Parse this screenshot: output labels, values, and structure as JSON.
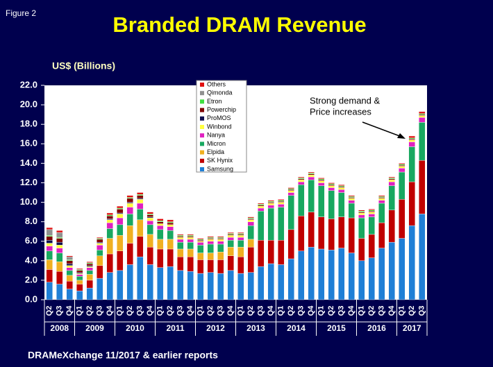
{
  "chart_data": {
    "type": "stacked_bar",
    "figure_label": "Figure 2",
    "title": "Branded DRAM Revenue",
    "y_label": "US$ (Billions)",
    "annotation": [
      "Strong demand &",
      "Price increases"
    ],
    "source": "DRAMeXchange 11/2017 & earlier reports",
    "categories": [
      "Q2",
      "Q3",
      "Q4",
      "Q1",
      "Q2",
      "Q3",
      "Q4",
      "Q1",
      "Q2",
      "Q3",
      "Q4",
      "Q1",
      "Q2",
      "Q3",
      "Q4",
      "Q1",
      "Q2",
      "Q3",
      "Q4",
      "Q1",
      "Q2",
      "Q3",
      "Q4",
      "Q1",
      "Q2",
      "Q3",
      "Q4",
      "Q1",
      "Q2",
      "Q3",
      "Q4",
      "Q1",
      "Q2",
      "Q3",
      "Q4",
      "Q1",
      "Q2",
      "Q3"
    ],
    "years": [
      "2008",
      "2009",
      "2010",
      "2011",
      "2012",
      "2013",
      "2014",
      "2015",
      "2016",
      "2017"
    ],
    "ylim": [
      0,
      22
    ],
    "yticks": [
      {
        "value": 0,
        "label": "0.0"
      },
      {
        "value": 2,
        "label": "2.0"
      },
      {
        "value": 4,
        "label": "4.0"
      },
      {
        "value": 6,
        "label": "6.0"
      },
      {
        "value": 8,
        "label": "8.0"
      },
      {
        "value": 10,
        "label": "10.0"
      },
      {
        "value": 12,
        "label": "12.0"
      },
      {
        "value": 14,
        "label": "14.0"
      },
      {
        "value": 16,
        "label": "16.0"
      },
      {
        "value": 18,
        "label": "18.0"
      },
      {
        "value": 20,
        "label": "20.0"
      },
      {
        "value": 22,
        "label": "22.0"
      }
    ],
    "series": [
      {
        "name": "Samsung",
        "color": "#1f7fd6",
        "values": [
          1.8,
          1.6,
          1.1,
          0.9,
          1.2,
          2.2,
          2.8,
          3.0,
          3.6,
          4.4,
          3.6,
          3.3,
          3.4,
          3.0,
          2.9,
          2.7,
          2.8,
          2.7,
          3.0,
          2.7,
          2.8,
          3.4,
          3.7,
          3.6,
          4.2,
          5.0,
          5.4,
          5.2,
          5.1,
          5.3,
          4.8,
          4.0,
          4.3,
          5.3,
          5.9,
          6.3,
          7.6,
          8.8
        ]
      },
      {
        "name": "SK Hynix",
        "color": "#c00000",
        "values": [
          1.3,
          1.3,
          0.8,
          0.7,
          0.8,
          1.3,
          1.9,
          2.0,
          2.2,
          2.1,
          1.8,
          1.9,
          1.8,
          1.4,
          1.5,
          1.4,
          1.3,
          1.4,
          1.5,
          1.7,
          2.6,
          2.7,
          2.4,
          2.5,
          3.0,
          3.6,
          3.6,
          3.3,
          3.2,
          3.2,
          3.6,
          2.3,
          2.4,
          2.6,
          3.3,
          4.0,
          4.5,
          5.5
        ]
      },
      {
        "name": "Elpida",
        "color": "#f0b020",
        "values": [
          1.0,
          1.0,
          0.6,
          0.4,
          0.6,
          1.0,
          1.6,
          1.6,
          1.8,
          1.7,
          1.3,
          1.0,
          1.0,
          0.8,
          0.8,
          0.7,
          0.7,
          0.8,
          0.9,
          1.0,
          0.8,
          0,
          0,
          0,
          0,
          0,
          0,
          0,
          0,
          0,
          0,
          0,
          0,
          0,
          0,
          0,
          0,
          0
        ]
      },
      {
        "name": "Micron",
        "color": "#18a860",
        "values": [
          0.9,
          0.9,
          0.5,
          0.4,
          0.4,
          0.6,
          1.0,
          1.1,
          1.2,
          1.1,
          1.0,
          1.0,
          0.9,
          0.7,
          0.7,
          0.8,
          0.9,
          0.8,
          0.7,
          0.7,
          1.4,
          3.0,
          3.3,
          3.4,
          3.5,
          3.2,
          3.3,
          3.2,
          2.9,
          2.5,
          1.5,
          2.1,
          1.8,
          2.0,
          2.5,
          2.8,
          3.6,
          3.9
        ]
      },
      {
        "name": "Nanya",
        "color": "#e020c0",
        "values": [
          0.5,
          0.5,
          0.3,
          0.2,
          0.3,
          0.5,
          0.6,
          0.7,
          0.7,
          0.6,
          0.4,
          0.4,
          0.4,
          0.3,
          0.3,
          0.3,
          0.3,
          0.3,
          0.3,
          0.3,
          0.4,
          0.3,
          0.3,
          0.3,
          0.3,
          0.3,
          0.3,
          0.3,
          0.3,
          0.3,
          0.3,
          0.3,
          0.3,
          0.3,
          0.4,
          0.4,
          0.5,
          0.5
        ]
      },
      {
        "name": "Winbond",
        "color": "#ffff40",
        "values": [
          0.3,
          0.3,
          0.2,
          0.1,
          0.1,
          0.2,
          0.3,
          0.4,
          0.4,
          0.4,
          0.3,
          0.2,
          0.2,
          0.2,
          0.2,
          0.1,
          0.2,
          0.2,
          0.2,
          0.2,
          0.2,
          0.2,
          0.2,
          0.2,
          0.2,
          0.2,
          0.2,
          0.2,
          0.2,
          0.2,
          0.2,
          0.2,
          0.2,
          0.2,
          0.2,
          0.2,
          0.2,
          0.2
        ]
      },
      {
        "name": "ProMOS",
        "color": "#101050",
        "values": [
          0.3,
          0.3,
          0.2,
          0.1,
          0.1,
          0.1,
          0.1,
          0.1,
          0.1,
          0.1,
          0.1,
          0,
          0,
          0,
          0,
          0,
          0,
          0,
          0,
          0,
          0,
          0,
          0,
          0,
          0,
          0,
          0,
          0,
          0,
          0,
          0,
          0,
          0,
          0,
          0,
          0,
          0,
          0
        ]
      },
      {
        "name": "Powerchip",
        "color": "#800000",
        "values": [
          0.4,
          0.4,
          0.3,
          0.2,
          0.2,
          0.3,
          0.3,
          0.4,
          0.4,
          0.3,
          0.2,
          0.2,
          0.2,
          0.1,
          0.1,
          0.1,
          0.1,
          0.1,
          0.1,
          0.1,
          0.1,
          0.1,
          0.1,
          0.1,
          0.1,
          0.1,
          0.1,
          0.1,
          0.1,
          0.1,
          0.1,
          0.1,
          0.1,
          0.1,
          0.1,
          0.1,
          0.1,
          0.1
        ]
      },
      {
        "name": "Etron",
        "color": "#40e040",
        "values": [
          0.1,
          0.1,
          0.1,
          0.1,
          0.1,
          0.1,
          0.1,
          0.1,
          0.1,
          0.1,
          0.1,
          0.1,
          0.1,
          0.1,
          0.1,
          0.1,
          0.1,
          0.1,
          0.1,
          0.1,
          0.1,
          0.1,
          0.1,
          0.1,
          0.1,
          0.1,
          0.1,
          0.1,
          0.1,
          0.1,
          0.1,
          0.1,
          0.1,
          0.1,
          0.1,
          0.1,
          0.1,
          0.1
        ]
      },
      {
        "name": "Qimonda",
        "color": "#909090",
        "values": [
          0.6,
          0.5,
          0.3,
          0,
          0,
          0,
          0,
          0,
          0,
          0,
          0,
          0,
          0,
          0,
          0,
          0,
          0,
          0,
          0,
          0,
          0,
          0,
          0,
          0,
          0,
          0,
          0,
          0,
          0,
          0,
          0,
          0,
          0,
          0,
          0,
          0,
          0,
          0
        ]
      },
      {
        "name": "Others",
        "color": "#e01010",
        "values": [
          0.2,
          0.2,
          0.1,
          0.1,
          0.1,
          0.1,
          0.2,
          0.2,
          0.2,
          0.2,
          0.2,
          0.2,
          0.2,
          0.1,
          0.1,
          0.1,
          0.1,
          0.1,
          0.1,
          0.1,
          0.1,
          0.1,
          0.1,
          0.1,
          0.1,
          0.1,
          0.1,
          0.1,
          0.1,
          0.1,
          0.1,
          0.1,
          0.1,
          0.1,
          0.1,
          0.1,
          0.2,
          0.2
        ]
      }
    ]
  }
}
